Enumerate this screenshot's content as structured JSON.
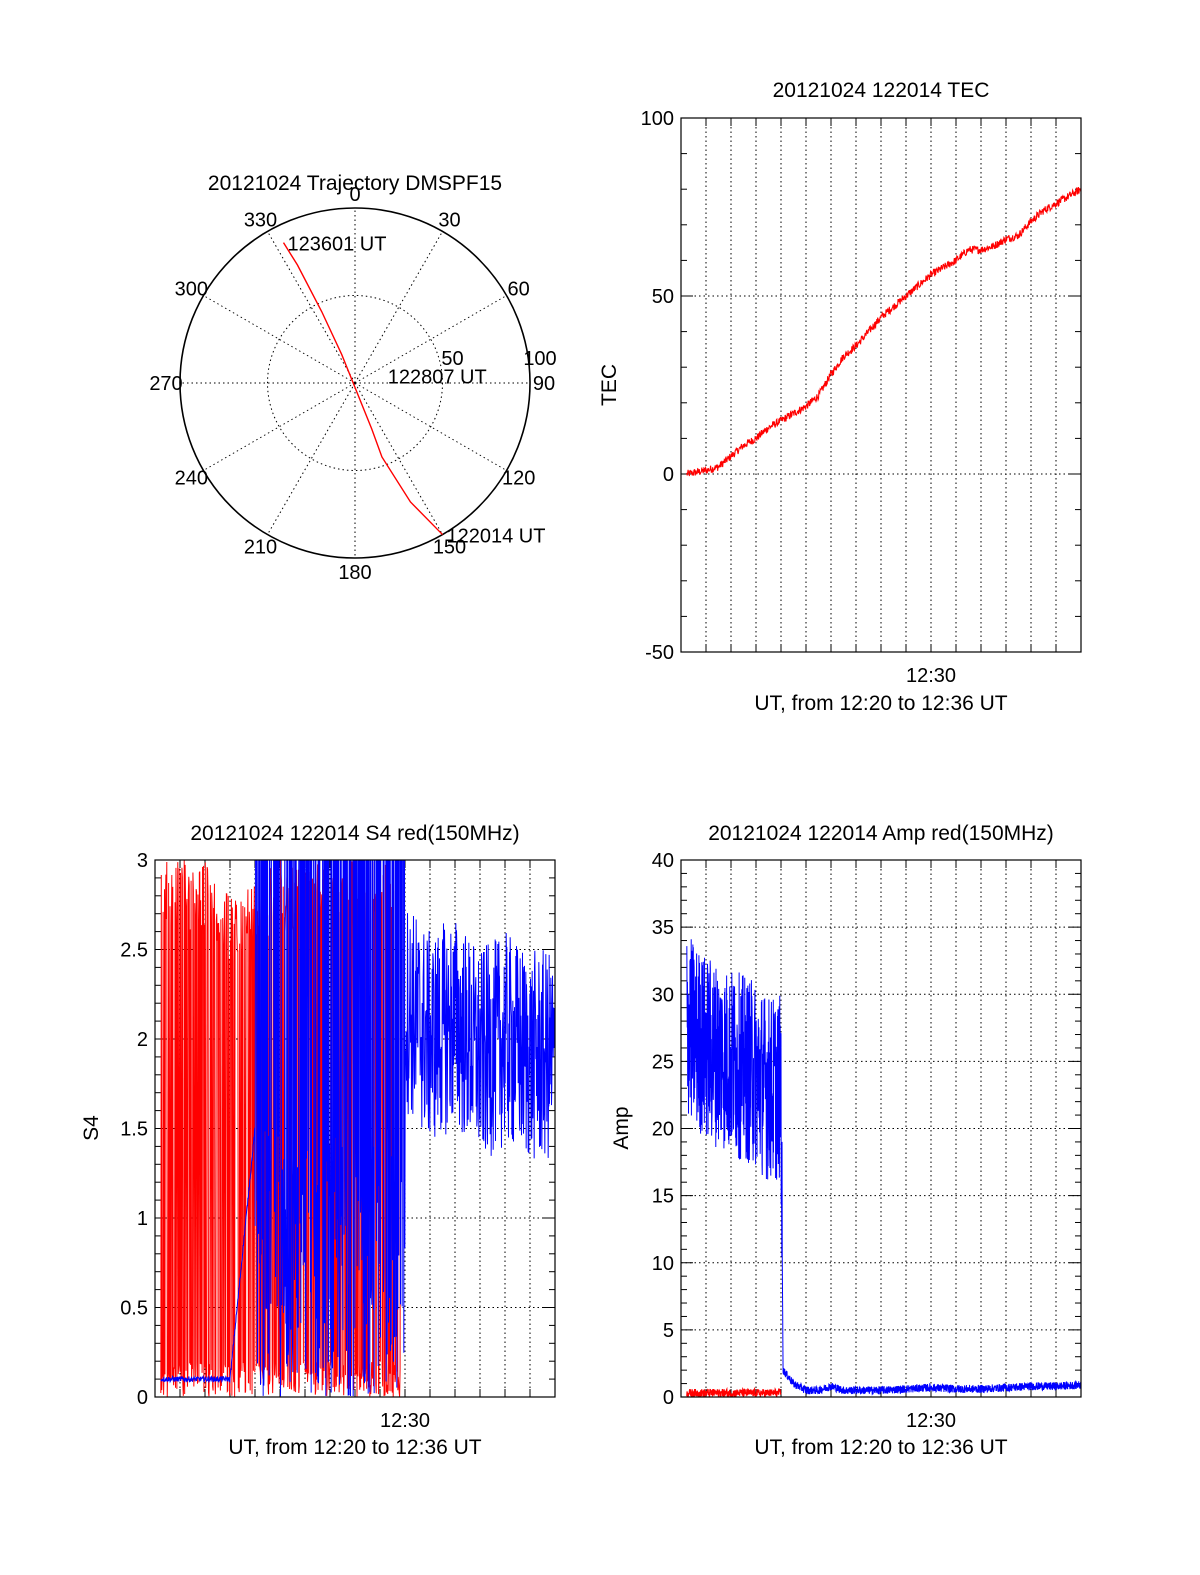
{
  "chart_data": [
    {
      "type": "polar",
      "title": "20121024 Trajectory DMSPF15",
      "angle_ticks": [
        "0",
        "30",
        "60",
        "90",
        "120",
        "150",
        "180",
        "210",
        "240",
        "270",
        "300",
        "330"
      ],
      "radial_ticks": [
        "50",
        "100"
      ],
      "rlim": [
        0,
        100
      ],
      "grid": true,
      "series": [
        {
          "color": "#ff0000",
          "points": [
            {
              "az": 150,
              "r": 100
            },
            {
              "az": 155,
              "r": 75
            },
            {
              "az": 160,
              "r": 45
            },
            {
              "az": 160,
              "r": 28
            },
            {
              "az": 335,
              "r": 18
            },
            {
              "az": 335,
              "r": 45
            },
            {
              "az": 334,
              "r": 75
            },
            {
              "az": 333,
              "r": 90
            }
          ]
        }
      ],
      "annotations": [
        {
          "text": "123601 UT",
          "az": 333,
          "r": 90
        },
        {
          "text": "122807 UT",
          "az": 75,
          "r": 17
        },
        {
          "text": "122014 UT",
          "az": 150,
          "r": 100
        }
      ]
    },
    {
      "type": "line",
      "title": "20121024 122014 TEC",
      "xlabel": "UT, from 12:20 to 12:36 UT",
      "ylabel": "TEC",
      "xlim": [
        "12:20",
        "12:36"
      ],
      "ylim": [
        -50,
        100
      ],
      "x_tick_labels": [
        {
          "x": "12:30",
          "label": "12:30"
        }
      ],
      "y_ticks": [
        -50,
        0,
        50,
        100
      ],
      "grid": true,
      "series": [
        {
          "color": "#ff0000",
          "x": [
            "12:20:14",
            "12:21:00",
            "12:21:30",
            "12:22:00",
            "12:22:30",
            "12:23:00",
            "12:23:30",
            "12:24:00",
            "12:24:30",
            "12:25:00",
            "12:25:30",
            "12:26:00",
            "12:26:30",
            "12:27:00",
            "12:27:30",
            "12:28:00",
            "12:28:30",
            "12:29:00",
            "12:29:30",
            "12:30:00",
            "12:30:30",
            "12:31:00",
            "12:31:30",
            "12:32:00",
            "12:32:30",
            "12:33:00",
            "12:33:30",
            "12:34:00",
            "12:34:30",
            "12:35:00",
            "12:35:30",
            "12:36:00"
          ],
          "values": [
            0,
            1,
            2,
            5,
            8,
            10,
            13,
            15,
            17,
            19,
            22,
            28,
            33,
            36,
            40,
            44,
            47,
            50,
            53,
            56,
            58,
            60,
            63,
            63,
            64,
            66,
            67,
            71,
            74,
            76,
            78,
            80
          ]
        }
      ]
    },
    {
      "type": "line",
      "title": "20121024 122014 S4 red(150MHz)",
      "xlabel": "UT, from 12:20 to 12:36 UT",
      "ylabel": "S4",
      "xlim": [
        "12:20",
        "12:36"
      ],
      "ylim": [
        0,
        3
      ],
      "x_tick_labels": [
        {
          "x": "12:30",
          "label": "12:30"
        }
      ],
      "y_ticks": [
        0,
        0.5,
        1,
        1.5,
        2,
        2.5,
        3
      ],
      "grid": true,
      "series": [
        {
          "color": "#ff0000",
          "description": "oscillates between ~0 and 3 from 12:20 to about 12:30, then ends",
          "x": [
            "12:20:14",
            "12:21:00",
            "12:22:00",
            "12:23:00",
            "12:24:00",
            "12:25:00",
            "12:26:00",
            "12:27:00",
            "12:28:00",
            "12:29:00",
            "12:29:50"
          ],
          "values": [
            3,
            3,
            3,
            2.8,
            2.9,
            3,
            3,
            3,
            3,
            3,
            3
          ]
        },
        {
          "color": "#0000ff",
          "x": [
            "12:20:14",
            "12:21:00",
            "12:22:00",
            "12:23:00",
            "12:24:00",
            "12:25:00",
            "12:26:00",
            "12:27:00",
            "12:28:00",
            "12:29:00",
            "12:30:00",
            "12:31:00",
            "12:32:00",
            "12:33:00",
            "12:34:00",
            "12:35:00",
            "12:36:00"
          ],
          "values": [
            0.1,
            0.1,
            0.1,
            0.1,
            1.5,
            2.0,
            2.8,
            3.0,
            3.0,
            3.0,
            2.2,
            2.0,
            2.1,
            1.9,
            2.0,
            1.9,
            1.9
          ]
        }
      ]
    },
    {
      "type": "line",
      "title": "20121024 122014 Amp red(150MHz)",
      "xlabel": "UT, from 12:20 to 12:36 UT",
      "ylabel": "Amp",
      "xlim": [
        "12:20",
        "12:36"
      ],
      "ylim": [
        0,
        40
      ],
      "x_tick_labels": [
        {
          "x": "12:30",
          "label": "12:30"
        }
      ],
      "y_ticks": [
        0,
        5,
        10,
        15,
        20,
        25,
        30,
        35,
        40
      ],
      "grid": true,
      "series": [
        {
          "color": "#0000ff",
          "x": [
            "12:20:14",
            "12:20:30",
            "12:21:00",
            "12:21:30",
            "12:22:00",
            "12:22:30",
            "12:23:00",
            "12:23:30",
            "12:24:00",
            "12:24:05",
            "12:24:30",
            "12:25:00",
            "12:25:30",
            "12:26:00",
            "12:26:30",
            "12:27:00",
            "12:28:00",
            "12:29:00",
            "12:30:00",
            "12:31:00",
            "12:32:00",
            "12:33:00",
            "12:34:00",
            "12:35:00",
            "12:36:00"
          ],
          "values": [
            28,
            27,
            26,
            25.5,
            25,
            24.5,
            24,
            23,
            23,
            2,
            1,
            0.5,
            0.5,
            0.8,
            0.5,
            0.5,
            0.5,
            0.6,
            0.7,
            0.6,
            0.6,
            0.7,
            0.8,
            0.8,
            0.9
          ]
        },
        {
          "color": "#ff0000",
          "x": [
            "12:20:14",
            "12:22:00",
            "12:24:00"
          ],
          "values": [
            0.3,
            0.3,
            0.3
          ]
        }
      ]
    }
  ]
}
